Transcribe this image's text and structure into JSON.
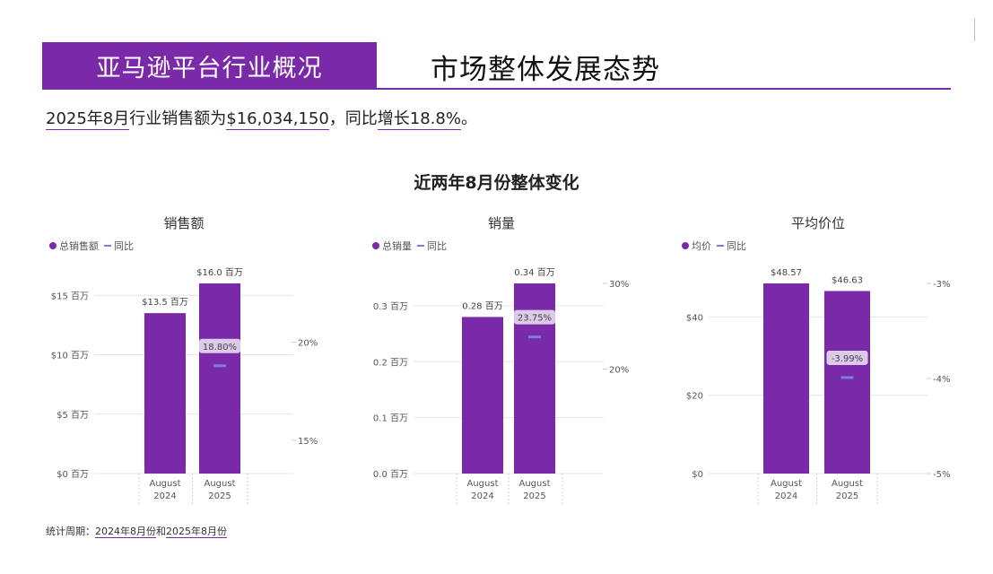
{
  "header": {
    "box_title": "亚马逊平台行业概况",
    "title": "市场整体发展态势"
  },
  "summary": {
    "part1": "2025年8月",
    "part2": "行业销售额为",
    "part3": "$16,034,150",
    "part4": "，同比",
    "part5": "增长18.8%",
    "part6": "。"
  },
  "section_title": "近两年8月份整体变化",
  "footnote": {
    "prefix": "统计周期：",
    "p1": "2024年8月份",
    "p2": "和",
    "p3": "2025年8月份"
  },
  "colors": {
    "bar": "#7a2aa8",
    "line": "#7b7fd6",
    "grid": "#e4e4e4"
  },
  "chart_data": [
    {
      "type": "bar",
      "title": "销售额",
      "legend": [
        "总销售额",
        "同比"
      ],
      "categories": [
        [
          "August",
          "2024"
        ],
        [
          "August",
          "2025"
        ]
      ],
      "values": [
        13.5,
        16.0
      ],
      "bar_labels": [
        "$13.5 百万",
        "$16.0 百万"
      ],
      "y_ticks": [
        0,
        5,
        10,
        15
      ],
      "y_tick_labels": [
        "$0 百万",
        "$5 百万",
        "$10 百万",
        "$15 百万"
      ],
      "ylim": [
        0,
        16.0
      ],
      "y2_ticks": [
        15,
        20
      ],
      "y2_tick_labels": [
        "15%",
        "20%"
      ],
      "y2lim": [
        13.3,
        23.0
      ],
      "yoy": [
        null,
        18.8
      ],
      "yoy_label": "18.80%"
    },
    {
      "type": "bar",
      "title": "销量",
      "legend": [
        "总销量",
        "同比"
      ],
      "categories": [
        [
          "August",
          "2024"
        ],
        [
          "August",
          "2025"
        ]
      ],
      "values": [
        0.28,
        0.34
      ],
      "bar_labels": [
        "0.28 百万",
        "0.34 百万"
      ],
      "y_ticks": [
        0,
        0.1,
        0.2,
        0.3
      ],
      "y_tick_labels": [
        "0.0 百万",
        "0.1 百万",
        "0.2 百万",
        "0.3 百万"
      ],
      "ylim": [
        0,
        0.34
      ],
      "y2_ticks": [
        20,
        30
      ],
      "y2_tick_labels": [
        "20%",
        "30%"
      ],
      "y2lim": [
        7.8,
        30.0
      ],
      "yoy": [
        null,
        23.75
      ],
      "yoy_label": "23.75%"
    },
    {
      "type": "bar",
      "title": "平均价位",
      "legend": [
        "均价",
        "同比"
      ],
      "categories": [
        [
          "August",
          "2024"
        ],
        [
          "August",
          "2025"
        ]
      ],
      "values": [
        48.57,
        46.63
      ],
      "bar_labels": [
        "$48.57",
        "$46.63"
      ],
      "y_ticks": [
        0,
        20,
        40
      ],
      "y_tick_labels": [
        "$0",
        "$20",
        "$40"
      ],
      "ylim": [
        0,
        48.57
      ],
      "y2_ticks": [
        -5,
        -4,
        -3
      ],
      "y2_tick_labels": [
        "-5%",
        "-4%",
        "-3%"
      ],
      "y2lim": [
        -5.0,
        -3.0
      ],
      "yoy": [
        null,
        -3.99
      ],
      "yoy_label": "-3.99%"
    }
  ]
}
